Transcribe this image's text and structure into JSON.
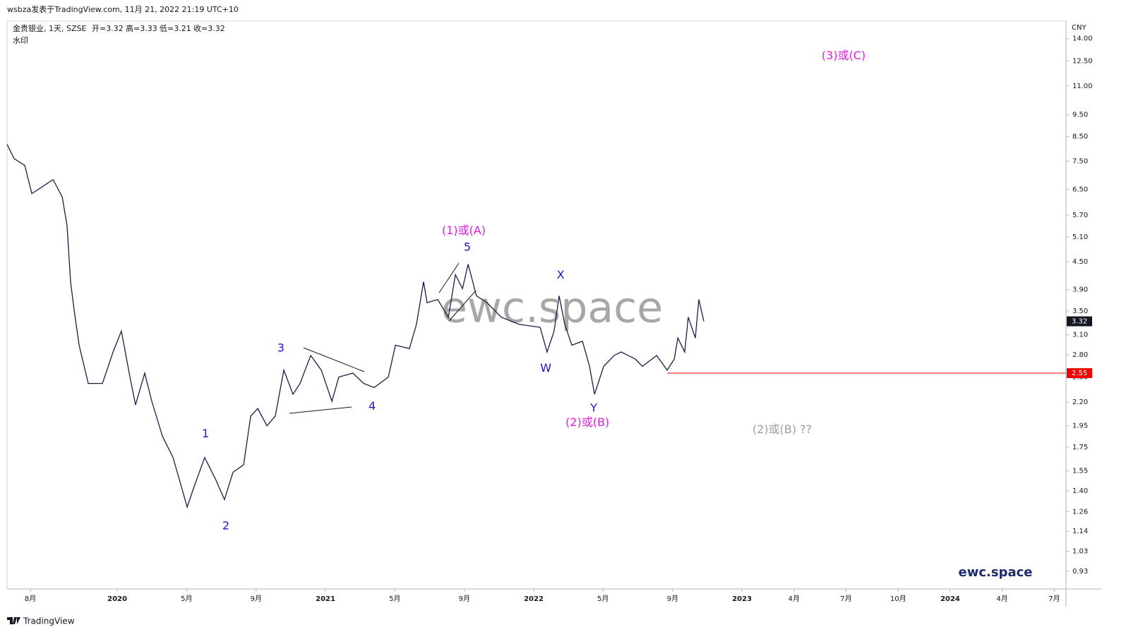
{
  "header": {
    "publish": "wsbza发表于TradingView.com, 11月 21, 2022 21:19 UTC+10",
    "symbol": "金贵银业, 1天, SZSE",
    "ohlc": [
      "开=3.32",
      "高=3.33",
      "低=3.21",
      "收=3.32"
    ],
    "indicator": "水印"
  },
  "chart_data": {
    "type": "line",
    "color": "#1c1c4a",
    "log_y": true,
    "y_unit": "CNY",
    "x": [
      2019.471,
      2019.505,
      2019.556,
      2019.59,
      2019.641,
      2019.692,
      2019.736,
      2019.759,
      2019.776,
      2019.793,
      2019.817,
      2019.861,
      2019.929,
      2019.98,
      2020.02,
      2020.064,
      2020.088,
      2020.132,
      2020.166,
      2020.217,
      2020.268,
      2020.336,
      2020.369,
      2020.42,
      2020.471,
      2020.515,
      2020.556,
      2020.607,
      2020.641,
      2020.675,
      2020.719,
      2020.759,
      2020.8,
      2020.844,
      2020.878,
      2020.929,
      2020.98,
      2021.031,
      2021.064,
      2021.132,
      2021.183,
      2021.234,
      2021.302,
      2021.336,
      2021.403,
      2021.437,
      2021.471,
      2021.488,
      2021.539,
      2021.59,
      2021.624,
      2021.658,
      2021.685,
      2021.725,
      2021.776,
      2021.844,
      2021.929,
      2022.031,
      2022.064,
      2022.098,
      2022.122,
      2022.149,
      2022.183,
      2022.234,
      2022.268,
      2022.292,
      2022.336,
      2022.386,
      2022.42,
      2022.488,
      2022.522,
      2022.59,
      2022.641,
      2022.675,
      2022.692,
      2022.725,
      2022.742,
      2022.776,
      2022.793,
      2022.817
    ],
    "values": [
      8.17,
      7.6,
      7.34,
      6.36,
      6.59,
      6.83,
      6.25,
      5.41,
      4.06,
      3.52,
      2.94,
      2.42,
      2.42,
      2.84,
      3.16,
      2.46,
      2.17,
      2.55,
      2.21,
      1.85,
      1.66,
      1.29,
      1.43,
      1.66,
      1.49,
      1.34,
      1.54,
      1.6,
      2.05,
      2.13,
      1.95,
      2.05,
      2.59,
      2.29,
      2.42,
      2.79,
      2.59,
      2.21,
      2.5,
      2.55,
      2.42,
      2.37,
      2.5,
      2.94,
      2.89,
      3.27,
      4.06,
      3.65,
      3.71,
      3.39,
      4.21,
      3.92,
      4.44,
      3.78,
      3.65,
      3.39,
      3.27,
      3.22,
      2.84,
      3.16,
      3.78,
      3.27,
      2.94,
      3.0,
      2.64,
      2.29,
      2.64,
      2.79,
      2.84,
      2.74,
      2.64,
      2.79,
      2.59,
      2.74,
      3.05,
      2.84,
      3.39,
      3.05,
      3.71,
      3.32
    ],
    "xlim": [
      2019.471,
      2024.556
    ],
    "xticks": [
      {
        "value": 2019.583,
        "label": "8月"
      },
      2020,
      {
        "value": 2020.333,
        "label": "5月"
      },
      {
        "value": 2020.667,
        "label": "9月"
      },
      2021,
      {
        "value": 2021.333,
        "label": "5月"
      },
      {
        "value": 2021.667,
        "label": "9月"
      },
      2022,
      {
        "value": 2022.333,
        "label": "5月"
      },
      {
        "value": 2022.667,
        "label": "9月"
      },
      2023,
      {
        "value": 2023.25,
        "label": "4月"
      },
      {
        "value": 2023.5,
        "label": "7月"
      },
      {
        "value": 2023.75,
        "label": "10月"
      },
      2024,
      {
        "value": 2024.25,
        "label": "4月"
      },
      {
        "value": 2024.5,
        "label": "7月"
      }
    ],
    "ylim": [
      0.85,
      15.3
    ],
    "yticks": [
      {
        "value": 14,
        "label": "14.00"
      },
      {
        "value": 12.5,
        "label": "12.50"
      },
      {
        "value": 11,
        "label": "11.00"
      },
      {
        "value": 9.5,
        "label": "9.50"
      },
      {
        "value": 8.5,
        "label": "8.50"
      },
      {
        "value": 7.5,
        "label": "7.50"
      },
      {
        "value": 6.5,
        "label": "6.50"
      },
      {
        "value": 5.7,
        "label": "5.70"
      },
      {
        "value": 5.1,
        "label": "5.10"
      },
      {
        "value": 4.5,
        "label": "4.50"
      },
      {
        "value": 3.9,
        "label": "3.90"
      },
      {
        "value": 3.5,
        "label": "3.50"
      },
      {
        "value": 3.1,
        "label": "3.10"
      },
      {
        "value": 2.8,
        "label": "2.80"
      },
      {
        "value": 2.5,
        "label": "2.50"
      },
      {
        "value": 2.2,
        "label": "2.20"
      },
      {
        "value": 1.95,
        "label": "1.95"
      },
      {
        "value": 1.75,
        "label": "1.75"
      },
      {
        "value": 1.55,
        "label": "1.55"
      },
      {
        "value": 1.4,
        "label": "1.40"
      },
      {
        "value": 1.26,
        "label": "1.26"
      },
      {
        "value": 1.14,
        "label": "1.14"
      },
      {
        "value": 1.03,
        "label": "1.03"
      },
      {
        "value": 0.93,
        "label": "0.93"
      }
    ],
    "hline": {
      "value": 2.55,
      "label": "2.55",
      "x_start": 2022.641,
      "color": "#f00000"
    },
    "last_price": {
      "value": 3.32,
      "label": "3.32",
      "color": "#131722"
    },
    "annotations": [
      {
        "text": "(3)或(C)",
        "x": 2023.488,
        "y": 12.8,
        "color": "#e020e0"
      },
      {
        "text": "(1)或(A)",
        "x": 2021.664,
        "y": 5.26,
        "color": "#e020e0"
      },
      {
        "text": "5",
        "x": 2021.681,
        "y": 4.83,
        "color": "#1818d0"
      },
      {
        "text": "X",
        "x": 2022.129,
        "y": 4.19,
        "color": "#1818d0"
      },
      {
        "text": "3",
        "x": 2020.786,
        "y": 2.89,
        "color": "#1818d0"
      },
      {
        "text": "W",
        "x": 2022.058,
        "y": 2.61,
        "color": "#1818d0"
      },
      {
        "text": "4",
        "x": 2021.224,
        "y": 2.15,
        "color": "#1818d0"
      },
      {
        "text": "Y",
        "x": 2022.288,
        "y": 2.13,
        "color": "#1818d0"
      },
      {
        "text": "(2)或(B)",
        "x": 2022.258,
        "y": 1.98,
        "color": "#e020e0"
      },
      {
        "text": "(2)或(B) ??",
        "x": 2023.193,
        "y": 1.91,
        "color": "#9e9e9e"
      },
      {
        "text": "1",
        "x": 2020.424,
        "y": 1.87,
        "color": "#1818d0"
      },
      {
        "text": "2",
        "x": 2020.522,
        "y": 1.17,
        "color": "#1818d0"
      }
    ]
  },
  "watermark": "ewc.space",
  "brand": "ewc.space",
  "footer": "TradingView"
}
